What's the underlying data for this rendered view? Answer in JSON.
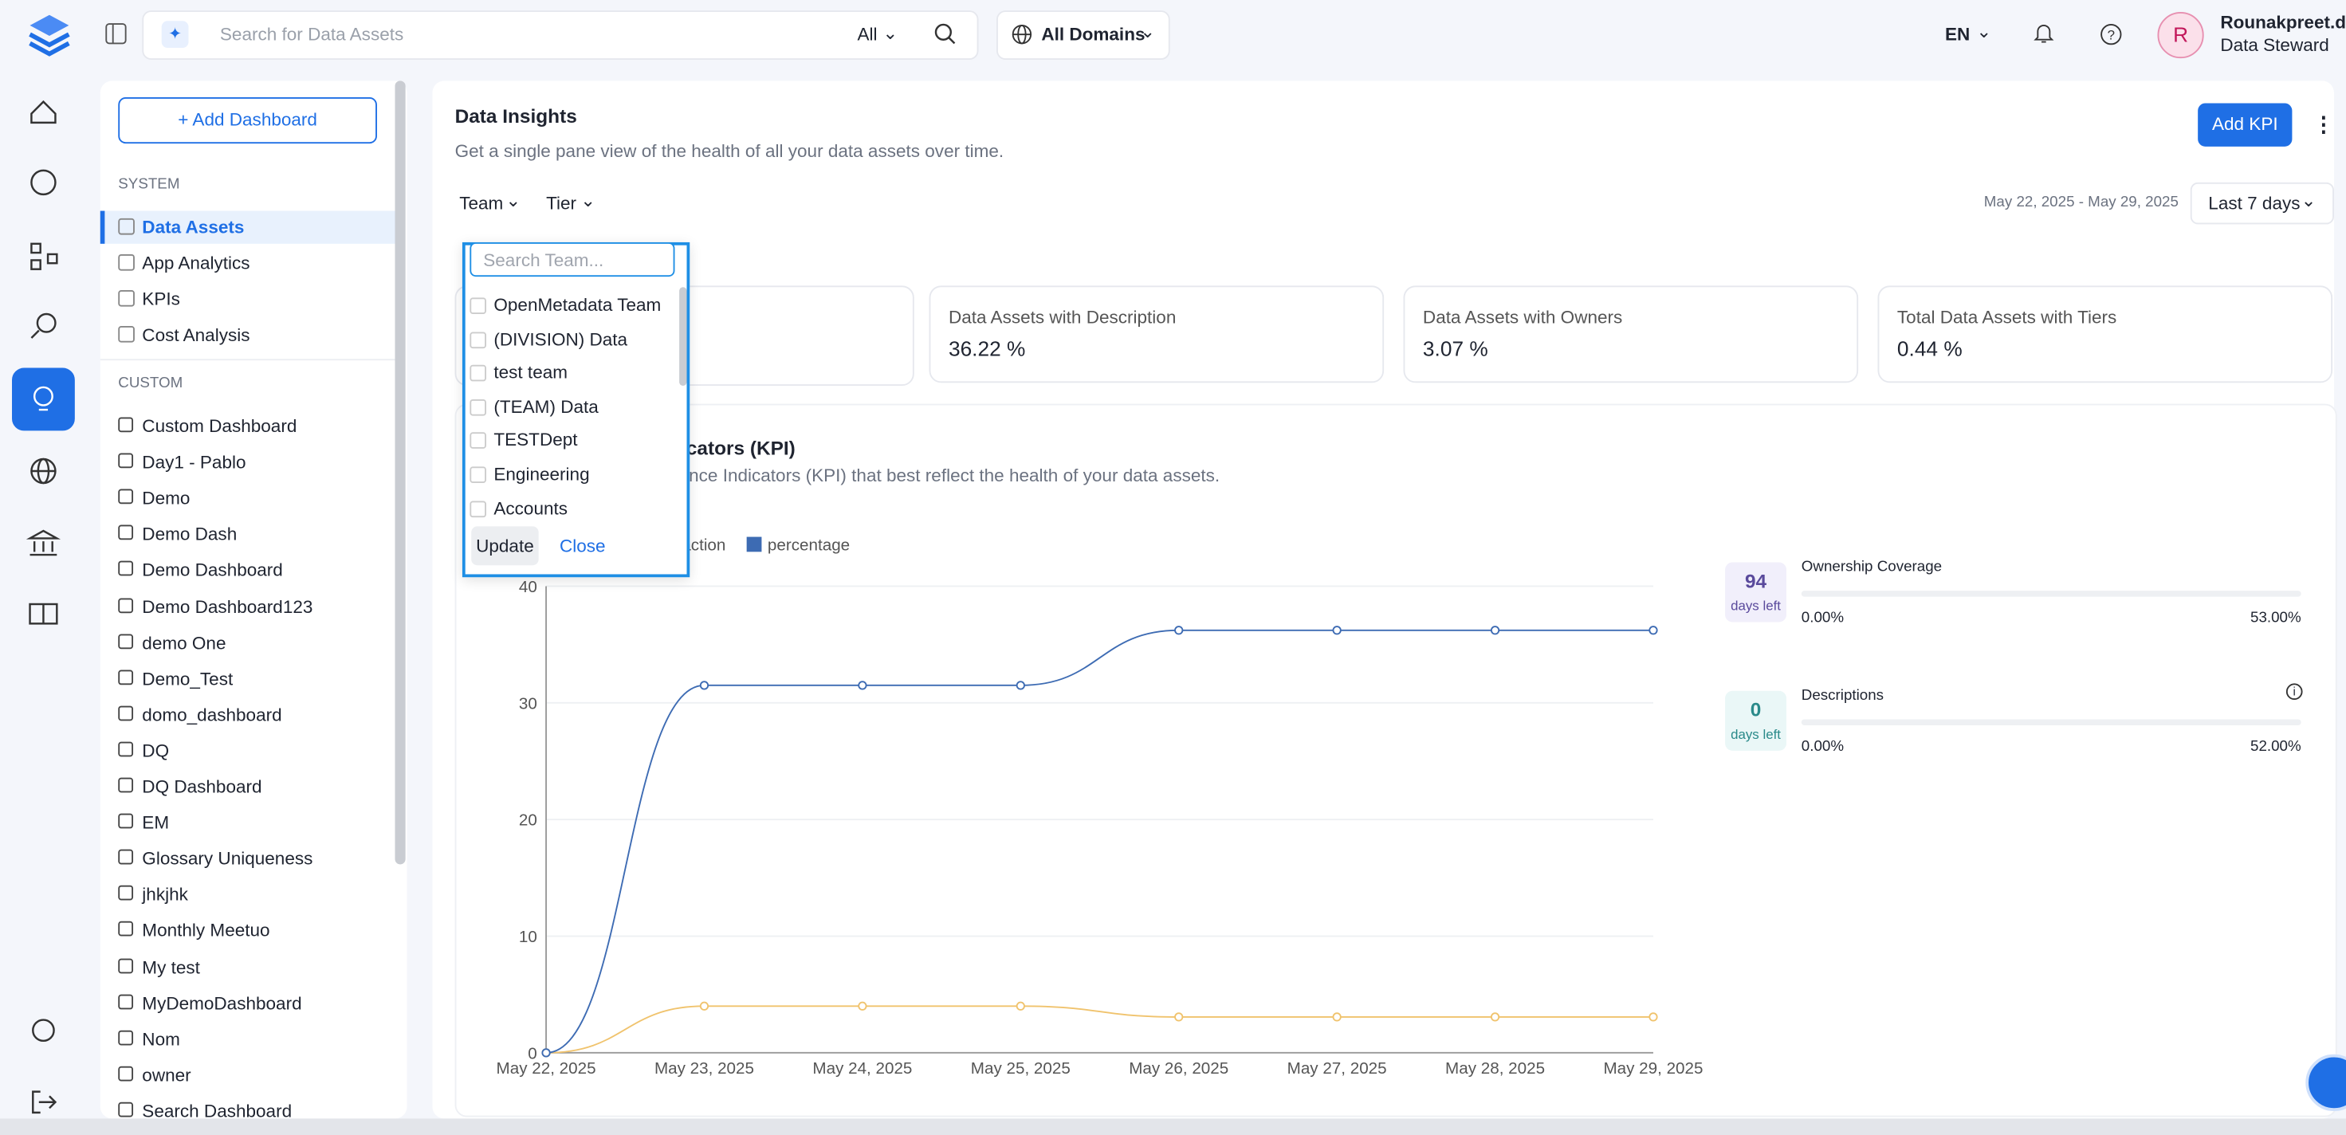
{
  "top_bar": {
    "search_placeholder": "Search for Data Assets",
    "search_scope": "All",
    "domain": "All Domains",
    "language": "EN",
    "user": {
      "initial": "R",
      "name": "Rounakpreet.d",
      "role": "Data Steward"
    }
  },
  "sidebar": {
    "add_button": "+ Add Dashboard",
    "system_heading": "SYSTEM",
    "system_items": [
      "Data Assets",
      "App Analytics",
      "KPIs",
      "Cost Analysis"
    ],
    "custom_heading": "CUSTOM",
    "custom_items": [
      "Custom Dashboard",
      "Day1 - Pablo",
      "Demo",
      "Demo Dash",
      "Demo Dashboard",
      "Demo Dashboard123",
      "demo One",
      "Demo_Test",
      "domo_dashboard",
      "DQ",
      "DQ Dashboard",
      "EM",
      "Glossary Uniqueness",
      "jhkjhk",
      "Monthly Meetuo",
      "My test",
      "MyDemoDashboard",
      "Nom",
      "owner",
      "Search Dashboard"
    ]
  },
  "header": {
    "title": "Data Insights",
    "subtitle": "Get a single pane view of the health of all your data assets over time.",
    "add_kpi": "Add KPI"
  },
  "filters": {
    "team": "Team",
    "tier": "Tier",
    "date_range": "May 22, 2025 - May 29, 2025",
    "period": "Last 7 days"
  },
  "summary_cards": [
    {
      "label": "Data Assets with Description",
      "value": "36.22 %"
    },
    {
      "label": "Data Assets with Owners",
      "value": "3.07 %"
    },
    {
      "label": "Total Data Assets with Tiers",
      "value": "0.44 %"
    }
  ],
  "kpi": {
    "title": "Key Performance Indicators (KPI)",
    "subtitle": "Identify the Key Performance Indicators (KPI) that best reflect the health of your data assets."
  },
  "chart_data": {
    "type": "line",
    "categories": [
      "May 22, 2025",
      "May 23, 2025",
      "May 24, 2025",
      "May 25, 2025",
      "May 26, 2025",
      "May 27, 2025",
      "May 28, 2025",
      "May 29, 2025"
    ],
    "series": [
      {
        "name": "fraction",
        "color": "#f0c36d",
        "values": [
          0,
          4,
          4,
          4,
          3.07,
          3.07,
          3.07,
          3.07
        ]
      },
      {
        "name": "percentage",
        "color": "#3d6bb3",
        "values": [
          0,
          31.5,
          31.5,
          31.5,
          36.22,
          36.22,
          36.22,
          36.22
        ]
      }
    ],
    "ylim": [
      0,
      40
    ],
    "yticks": [
      0,
      10,
      20,
      30,
      40
    ],
    "grid": true
  },
  "kpi_progress": [
    {
      "days": "94",
      "days_label": "days left",
      "name": "Ownership Coverage",
      "current": "0.00%",
      "target": "53.00%"
    },
    {
      "days": "0",
      "days_label": "days left",
      "name": "Descriptions",
      "current": "0.00%",
      "target": "52.00%"
    }
  ],
  "team_dropdown": {
    "search_placeholder": "Search Team...",
    "options": [
      "OpenMetadata Team",
      "(DIVISION) Data",
      "test team",
      "(TEAM) Data",
      "TESTDept",
      "Engineering",
      "Accounts"
    ],
    "update": "Update",
    "close": "Close"
  }
}
